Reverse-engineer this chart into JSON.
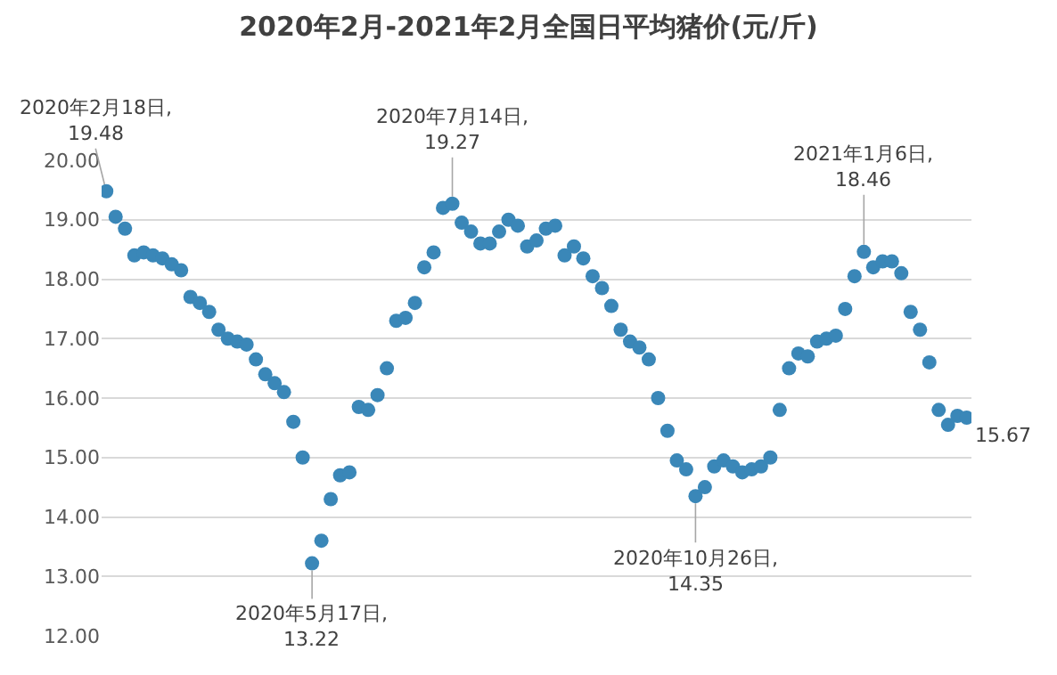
{
  "chart_data": {
    "type": "scatter",
    "title": "2020年2月-2021年2月全国日平均猪价(元/斤)",
    "marker": "circle",
    "grid": "y",
    "tick_labels": "y",
    "ylim": [
      12,
      20
    ],
    "yticks": [
      {
        "value": 12,
        "label": "12.00"
      },
      {
        "value": 13,
        "label": "13.00"
      },
      {
        "value": 14,
        "label": "14.00"
      },
      {
        "value": 15,
        "label": "15.00"
      },
      {
        "value": 16,
        "label": "16.00"
      },
      {
        "value": 17,
        "label": "17.00"
      },
      {
        "value": 18,
        "label": "18.00"
      },
      {
        "value": 19,
        "label": "19.00"
      },
      {
        "value": 20,
        "label": "20.00"
      }
    ],
    "categories": [
      null,
      null,
      null,
      null,
      null,
      null,
      null,
      null,
      null,
      null,
      null,
      null,
      null,
      null,
      null,
      null,
      null,
      null,
      null,
      null,
      null,
      null,
      null,
      null,
      null,
      null,
      null,
      null,
      null,
      null,
      null,
      null,
      null,
      null,
      null,
      null,
      null,
      null,
      null,
      null,
      null,
      null,
      null,
      null,
      null,
      null,
      null,
      null,
      null,
      null,
      null,
      null,
      null,
      null,
      null,
      null,
      null,
      null,
      null,
      null,
      null,
      null,
      null,
      null,
      null,
      null,
      null,
      null,
      null,
      null,
      null,
      null,
      null,
      null,
      null,
      null,
      null,
      null,
      null,
      null,
      null,
      null,
      null,
      null,
      null,
      null,
      null,
      null,
      null,
      null,
      null,
      null,
      null
    ],
    "series": [
      {
        "color": "#3a87b8",
        "values": [
          19.48,
          19.05,
          18.85,
          18.4,
          18.45,
          18.4,
          18.35,
          18.25,
          18.15,
          17.7,
          17.6,
          17.45,
          17.15,
          17.0,
          16.95,
          16.9,
          16.65,
          16.4,
          16.25,
          16.1,
          15.6,
          15.0,
          13.22,
          13.6,
          14.3,
          14.7,
          14.75,
          15.85,
          15.8,
          16.05,
          16.5,
          17.3,
          17.35,
          17.6,
          18.2,
          18.45,
          19.2,
          19.27,
          18.95,
          18.8,
          18.6,
          18.6,
          18.8,
          19.0,
          18.9,
          18.55,
          18.65,
          18.85,
          18.9,
          18.4,
          18.55,
          18.35,
          18.05,
          17.85,
          17.55,
          17.15,
          16.95,
          16.85,
          16.65,
          16.0,
          15.45,
          14.95,
          14.8,
          14.35,
          14.5,
          14.85,
          14.95,
          14.85,
          14.75,
          14.8,
          14.85,
          15.0,
          15.8,
          16.5,
          16.75,
          16.7,
          16.95,
          17.0,
          17.05,
          17.5,
          18.05,
          18.46,
          18.2,
          18.3,
          18.3,
          18.1,
          17.45,
          17.15,
          16.6,
          15.8,
          15.55,
          15.7,
          15.67
        ]
      }
    ],
    "annotations": [
      {
        "text": "2020年2月18日,\n19.48",
        "y": 19.48
      },
      {
        "text": "2020年5月17日,\n13.22",
        "y": 13.22
      },
      {
        "text": "2020年7月14日,\n19.27",
        "y": 19.27
      },
      {
        "text": "2020年10月26日,\n14.35",
        "y": 14.35
      },
      {
        "text": "2021年1月6日,\n18.46",
        "y": 18.46
      },
      "15.67"
    ]
  }
}
